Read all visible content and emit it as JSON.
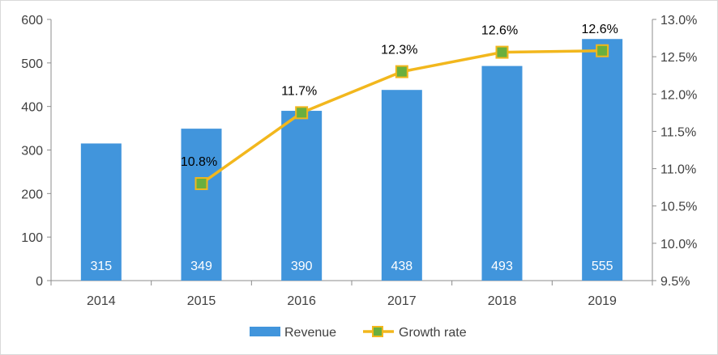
{
  "chart_data": {
    "type": "bar",
    "categories": [
      "2014",
      "2015",
      "2016",
      "2017",
      "2018",
      "2019"
    ],
    "series": [
      {
        "name": "Revenue",
        "type": "bar",
        "axis": "left",
        "values": [
          315,
          349,
          390,
          438,
          493,
          555
        ],
        "labels": [
          "315",
          "349",
          "390",
          "438",
          "493",
          "555"
        ],
        "color": "#4195DC"
      },
      {
        "name": "Growth rate",
        "type": "line",
        "axis": "right",
        "values": [
          null,
          10.8,
          11.75,
          12.3,
          12.56,
          12.58
        ],
        "labels": [
          "",
          "10.8%",
          "11.7%",
          "12.3%",
          "12.6%",
          "12.6%"
        ],
        "color": "#F2B71D",
        "marker_color": "#6AAF3E"
      }
    ],
    "y_left": {
      "ylim": [
        0,
        600
      ],
      "ticks": [
        0,
        100,
        200,
        300,
        400,
        500,
        600
      ],
      "tick_labels": [
        "0",
        "100",
        "200",
        "300",
        "400",
        "500",
        "600"
      ]
    },
    "y_right": {
      "ylim": [
        9.5,
        13.0
      ],
      "ticks": [
        9.5,
        10.0,
        10.5,
        11.0,
        11.5,
        12.0,
        12.5,
        13.0
      ],
      "tick_labels": [
        "9.5%",
        "10.0%",
        "10.5%",
        "11.0%",
        "11.5%",
        "12.0%",
        "12.5%",
        "13.0%"
      ]
    },
    "title": "",
    "xlabel": "",
    "ylabel": "",
    "grid": false,
    "legend": {
      "position": "bottom",
      "entries": [
        "Revenue",
        "Growth rate"
      ]
    }
  }
}
